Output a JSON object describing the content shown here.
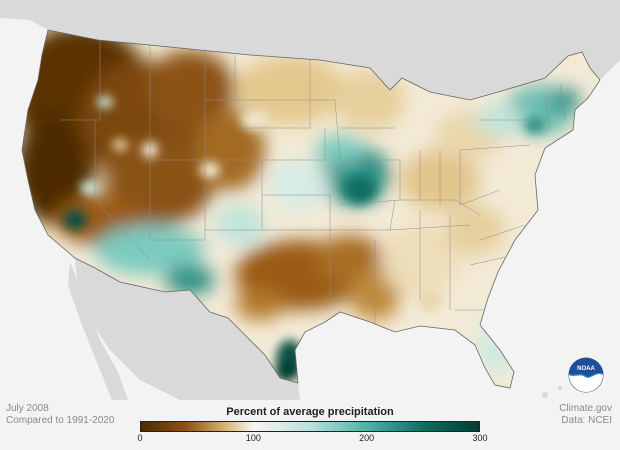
{
  "map": {
    "date": "July 2008",
    "baseline": "Compared to 1991-2020",
    "credit": "Climate.gov",
    "source": "Data: NCEI",
    "logo_text": "NOAA"
  },
  "legend": {
    "title": "Percent of average precipitation",
    "ticks": [
      {
        "label": "0",
        "value": 0
      },
      {
        "label": "100",
        "value": 100
      },
      {
        "label": "200",
        "value": 200
      },
      {
        "label": "300",
        "value": 300
      }
    ],
    "min": 0,
    "max": 300,
    "stops": [
      {
        "value": 0,
        "color": "#4e2b04"
      },
      {
        "value": 40,
        "color": "#8c5314"
      },
      {
        "value": 75,
        "color": "#d8b574"
      },
      {
        "value": 100,
        "color": "#f7f5ef"
      },
      {
        "value": 150,
        "color": "#b7e3dc"
      },
      {
        "value": 200,
        "color": "#4fb3a8"
      },
      {
        "value": 250,
        "color": "#0f6f64"
      },
      {
        "value": 300,
        "color": "#033d33"
      }
    ]
  },
  "colors": {
    "very_dry": "#4e2b04",
    "dry": "#9a5c16",
    "near_normal": "#f7f5ef",
    "wet": "#4fb3a8",
    "very_wet": "#033d33",
    "land_outside": "#d9d9d9",
    "ocean": "#f3f3f3"
  }
}
